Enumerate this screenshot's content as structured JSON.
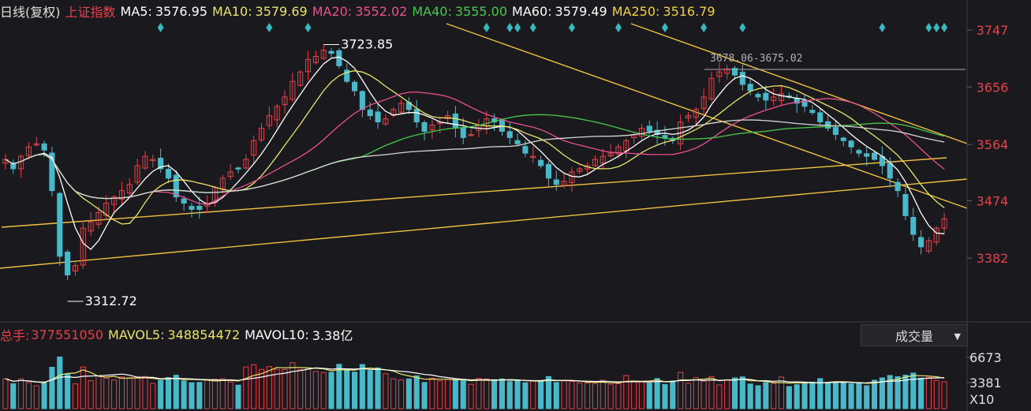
{
  "header": {
    "period": "日线(复权)",
    "index_name": "上证指数",
    "ma": [
      {
        "label": "MA5:",
        "value": "3576.95",
        "color": "#ffffff"
      },
      {
        "label": "MA10:",
        "value": "3579.69",
        "color": "#e8e46a"
      },
      {
        "label": "MA20:",
        "value": "3552.02",
        "color": "#e8508f"
      },
      {
        "label": "MA40:",
        "value": "3555.00",
        "color": "#46c94a"
      },
      {
        "label": "MA60:",
        "value": "3579.49",
        "color": "#ffffff"
      },
      {
        "label": "MA250:",
        "value": "3516.79",
        "color": "#f0d040"
      }
    ]
  },
  "volume_header": {
    "total_label": "总手:",
    "total_value": "377551050",
    "mavol5_label": "MAVOL5:",
    "mavol5_value": "348854472",
    "mavol10_label": "MAVOL10:",
    "mavol10_value": "3.38亿",
    "indicator_select": "成交量"
  },
  "price_axis": {
    "ticks": [
      "3747",
      "3656",
      "3564",
      "3474",
      "3382"
    ]
  },
  "volume_axis": {
    "ticks": [
      "6673",
      "3381"
    ],
    "unit": "X10"
  },
  "annotations": {
    "high": "3723.85",
    "low": "3312.72",
    "crosshair": "3678.06-3675.02"
  },
  "colors": {
    "up": "#e8404a",
    "down": "#4ab8c8",
    "background": "#1a1a1e",
    "trend": "#f0c040",
    "price_text": "#e8404a",
    "signal": "#3ab8c0"
  },
  "chart_data": {
    "type": "candlestick",
    "ylim": [
      3290,
      3770
    ],
    "yticks": [
      3747,
      3656,
      3564,
      3474,
      3382
    ],
    "high": 3723.85,
    "low": 3312.72,
    "crosshair_range": [
      3678.06,
      3675.02
    ],
    "closes": [
      3540,
      3525,
      3545,
      3560,
      3565,
      3555,
      3490,
      3385,
      3355,
      3370,
      3430,
      3440,
      3455,
      3470,
      3480,
      3490,
      3500,
      3530,
      3545,
      3540,
      3525,
      3510,
      3480,
      3470,
      3460,
      3460,
      3470,
      3495,
      3510,
      3520,
      3525,
      3540,
      3570,
      3590,
      3610,
      3625,
      3640,
      3665,
      3680,
      3700,
      3705,
      3715,
      3710,
      3690,
      3665,
      3650,
      3620,
      3610,
      3600,
      3605,
      3620,
      3630,
      3620,
      3600,
      3585,
      3595,
      3600,
      3610,
      3590,
      3575,
      3580,
      3595,
      3605,
      3600,
      3585,
      3575,
      3565,
      3550,
      3545,
      3530,
      3510,
      3500,
      3505,
      3520,
      3525,
      3530,
      3540,
      3545,
      3550,
      3560,
      3570,
      3580,
      3590,
      3585,
      3580,
      3575,
      3570,
      3600,
      3610,
      3620,
      3640,
      3670,
      3680,
      3685,
      3675,
      3660,
      3650,
      3640,
      3635,
      3640,
      3645,
      3640,
      3630,
      3625,
      3615,
      3600,
      3590,
      3580,
      3570,
      3560,
      3550,
      3545,
      3540,
      3530,
      3510,
      3490,
      3450,
      3420,
      3400,
      3410,
      3430,
      3445
    ],
    "volume_ylim": [
      0,
      8000
    ],
    "volume_ticks": [
      6673,
      3381
    ]
  }
}
